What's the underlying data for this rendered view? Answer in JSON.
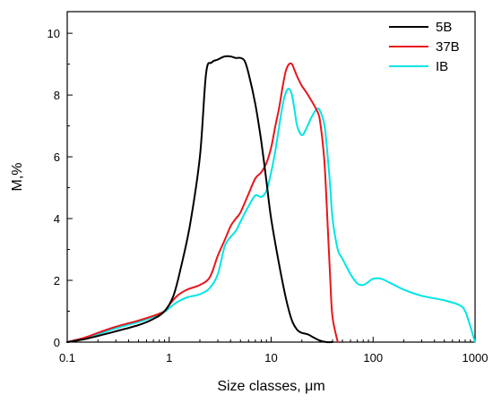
{
  "chart_data": {
    "type": "line",
    "xlabel": "Size classes, μm",
    "ylabel": "M,%",
    "x_scale": "log",
    "xlim": [
      0.1,
      1000
    ],
    "ylim": [
      0,
      10.7
    ],
    "x_ticks": [
      0.1,
      1,
      10,
      100,
      1000
    ],
    "x_tick_labels": [
      "0.1",
      "1",
      "10",
      "100",
      "1000"
    ],
    "y_ticks": [
      0,
      2,
      4,
      6,
      8,
      10
    ],
    "y_tick_labels": [
      "0",
      "2",
      "4",
      "6",
      "8",
      "10"
    ],
    "grid": false,
    "legend_position": "top-right",
    "series": [
      {
        "name": "5B",
        "color": "#000000",
        "x": [
          0.1,
          0.15,
          0.2,
          0.3,
          0.5,
          0.7,
          0.9,
          1.1,
          1.3,
          1.6,
          2.0,
          2.3,
          2.6,
          3.0,
          3.5,
          4.0,
          4.5,
          5.0,
          5.5,
          6.0,
          7.0,
          8.0,
          9.0,
          10,
          12,
          14,
          16,
          18,
          20,
          23,
          26,
          30,
          35,
          40
        ],
        "y": [
          0,
          0.1,
          0.2,
          0.35,
          0.55,
          0.75,
          1.0,
          1.5,
          2.4,
          3.8,
          6.0,
          8.7,
          9.05,
          9.15,
          9.25,
          9.25,
          9.2,
          9.2,
          9.1,
          8.7,
          7.7,
          6.5,
          5.2,
          4.0,
          2.5,
          1.4,
          0.7,
          0.4,
          0.3,
          0.25,
          0.15,
          0.05,
          0.0,
          0.0
        ]
      },
      {
        "name": "37B",
        "color": "#e8161b",
        "x": [
          0.1,
          0.15,
          0.2,
          0.3,
          0.5,
          0.7,
          0.9,
          1.0,
          1.2,
          1.5,
          2.0,
          2.5,
          3.0,
          3.5,
          4.0,
          4.5,
          5.0,
          6.0,
          7.0,
          8.0,
          9.0,
          10,
          11,
          12,
          13,
          14,
          15,
          16,
          17,
          18,
          20,
          22,
          25,
          28,
          30,
          33,
          35,
          38,
          40,
          45
        ],
        "y": [
          0,
          0.15,
          0.3,
          0.5,
          0.7,
          0.85,
          1.0,
          1.2,
          1.5,
          1.7,
          1.85,
          2.1,
          2.8,
          3.3,
          3.75,
          4.0,
          4.2,
          4.8,
          5.3,
          5.5,
          5.8,
          6.3,
          7.0,
          7.6,
          8.3,
          8.8,
          9.0,
          9.0,
          8.8,
          8.6,
          8.3,
          8.1,
          7.8,
          7.5,
          7.2,
          6.0,
          4.5,
          2.0,
          0.8,
          0.0
        ]
      },
      {
        "name": "IB",
        "color": "#00e5e5",
        "x": [
          0.1,
          0.15,
          0.2,
          0.3,
          0.5,
          0.7,
          0.9,
          1.0,
          1.2,
          1.5,
          2.0,
          2.5,
          3.0,
          3.5,
          4.0,
          4.5,
          5.0,
          6.0,
          7.0,
          8.0,
          9.0,
          10,
          11,
          12,
          13,
          14,
          15,
          16,
          17,
          18,
          20,
          22,
          25,
          28,
          30,
          33,
          35,
          38,
          40,
          45,
          50,
          60,
          70,
          80,
          90,
          100,
          120,
          150,
          200,
          300,
          500,
          700,
          800,
          900,
          1000
        ],
        "y": [
          0,
          0.12,
          0.25,
          0.45,
          0.65,
          0.82,
          0.98,
          1.1,
          1.3,
          1.45,
          1.55,
          1.75,
          2.2,
          3.1,
          3.4,
          3.6,
          3.9,
          4.4,
          4.75,
          4.7,
          4.9,
          5.5,
          6.2,
          7.0,
          7.7,
          8.1,
          8.2,
          8.0,
          7.5,
          7.0,
          6.7,
          6.9,
          7.3,
          7.55,
          7.5,
          7.1,
          6.4,
          5.0,
          4.0,
          3.0,
          2.7,
          2.2,
          1.9,
          1.85,
          1.95,
          2.05,
          2.05,
          1.9,
          1.7,
          1.5,
          1.35,
          1.2,
          1.0,
          0.5,
          0.0
        ]
      }
    ]
  }
}
